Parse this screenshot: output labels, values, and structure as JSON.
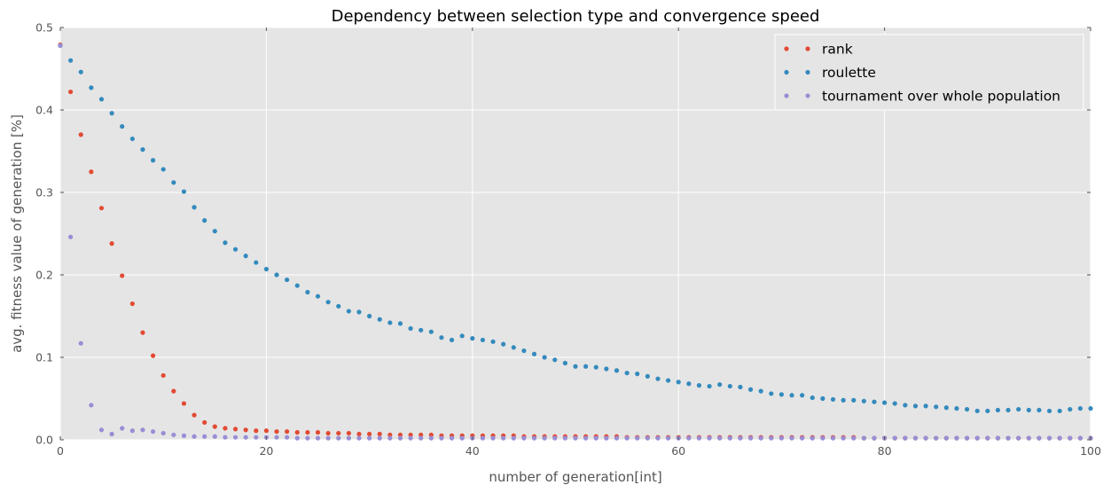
{
  "chart_data": {
    "type": "scatter",
    "title": "Dependency between selection type and convergence speed",
    "xlabel": "number of generation[int]",
    "ylabel": "avg. fitness value of generation [%]",
    "xlim": [
      0,
      100
    ],
    "ylim": [
      0,
      0.5
    ],
    "xticks": [
      0,
      20,
      40,
      60,
      80,
      100
    ],
    "yticks": [
      0.0,
      0.1,
      0.2,
      0.3,
      0.4,
      0.5
    ],
    "xtick_labels": [
      "0",
      "20",
      "40",
      "60",
      "80",
      "100"
    ],
    "ytick_labels": [
      "0.0",
      "0.1",
      "0.2",
      "0.3",
      "0.4",
      "0.5"
    ],
    "grid": true,
    "legend_position": "top-right",
    "x": [
      0,
      1,
      2,
      3,
      4,
      5,
      6,
      7,
      8,
      9,
      10,
      11,
      12,
      13,
      14,
      15,
      16,
      17,
      18,
      19,
      20,
      21,
      22,
      23,
      24,
      25,
      26,
      27,
      28,
      29,
      30,
      31,
      32,
      33,
      34,
      35,
      36,
      37,
      38,
      39,
      40,
      41,
      42,
      43,
      44,
      45,
      46,
      47,
      48,
      49,
      50,
      51,
      52,
      53,
      54,
      55,
      56,
      57,
      58,
      59,
      60,
      61,
      62,
      63,
      64,
      65,
      66,
      67,
      68,
      69,
      70,
      71,
      72,
      73,
      74,
      75,
      76,
      77,
      78,
      79,
      80,
      81,
      82,
      83,
      84,
      85,
      86,
      87,
      88,
      89,
      90,
      91,
      92,
      93,
      94,
      95,
      96,
      97,
      98,
      99,
      100
    ],
    "series": [
      {
        "name": "rank",
        "color": "#E24A33",
        "values": [
          0.479,
          0.422,
          0.37,
          0.325,
          0.281,
          0.238,
          0.199,
          0.165,
          0.13,
          0.102,
          0.078,
          0.059,
          0.044,
          0.03,
          0.021,
          0.016,
          0.014,
          0.013,
          0.012,
          0.011,
          0.011,
          0.01,
          0.01,
          0.009,
          0.009,
          0.009,
          0.008,
          0.008,
          0.008,
          0.007,
          0.007,
          0.007,
          0.006,
          0.006,
          0.006,
          0.006,
          0.006,
          0.005,
          0.005,
          0.005,
          0.005,
          0.005,
          0.005,
          0.005,
          0.005,
          0.004,
          0.004,
          0.004,
          0.004,
          0.004,
          0.004,
          0.004,
          0.004,
          0.004,
          0.004,
          0.003,
          0.003,
          0.003,
          0.003,
          0.003,
          0.003,
          0.003,
          0.003,
          0.003,
          0.003,
          0.003,
          0.003,
          0.003,
          0.003,
          0.003,
          0.003,
          0.003,
          0.003,
          0.003,
          0.003,
          0.003,
          0.003,
          0.003,
          0.002,
          0.002,
          0.002,
          0.002,
          0.002,
          0.002,
          0.002,
          0.002,
          0.002,
          0.002,
          0.002,
          0.002,
          0.002,
          0.002,
          0.002,
          0.002,
          0.002,
          0.002,
          0.002,
          0.002,
          0.002,
          0.002,
          0.002
        ]
      },
      {
        "name": "roulette",
        "color": "#348ABD",
        "values": [
          0.478,
          0.46,
          0.446,
          0.427,
          0.413,
          0.396,
          0.38,
          0.365,
          0.352,
          0.339,
          0.328,
          0.312,
          0.301,
          0.282,
          0.266,
          0.253,
          0.239,
          0.231,
          0.223,
          0.215,
          0.207,
          0.2,
          0.194,
          0.187,
          0.179,
          0.174,
          0.167,
          0.162,
          0.156,
          0.155,
          0.15,
          0.146,
          0.142,
          0.141,
          0.135,
          0.133,
          0.131,
          0.124,
          0.121,
          0.126,
          0.123,
          0.121,
          0.119,
          0.116,
          0.112,
          0.108,
          0.104,
          0.1,
          0.097,
          0.093,
          0.089,
          0.089,
          0.088,
          0.086,
          0.084,
          0.081,
          0.08,
          0.077,
          0.074,
          0.072,
          0.07,
          0.068,
          0.066,
          0.065,
          0.067,
          0.065,
          0.064,
          0.061,
          0.059,
          0.056,
          0.055,
          0.054,
          0.054,
          0.051,
          0.05,
          0.049,
          0.048,
          0.048,
          0.047,
          0.046,
          0.045,
          0.044,
          0.042,
          0.041,
          0.041,
          0.04,
          0.039,
          0.038,
          0.037,
          0.035,
          0.035,
          0.036,
          0.036,
          0.037,
          0.036,
          0.036,
          0.035,
          0.035,
          0.037,
          0.038,
          0.038
        ]
      },
      {
        "name": "tournament over whole population",
        "color": "#988ED5",
        "values": [
          0.478,
          0.246,
          0.117,
          0.042,
          0.012,
          0.007,
          0.014,
          0.011,
          0.012,
          0.01,
          0.008,
          0.006,
          0.005,
          0.004,
          0.004,
          0.004,
          0.003,
          0.003,
          0.003,
          0.003,
          0.003,
          0.003,
          0.003,
          0.002,
          0.002,
          0.002,
          0.002,
          0.002,
          0.002,
          0.002,
          0.002,
          0.002,
          0.002,
          0.002,
          0.002,
          0.002,
          0.002,
          0.002,
          0.002,
          0.002,
          0.002,
          0.002,
          0.002,
          0.002,
          0.002,
          0.002,
          0.002,
          0.002,
          0.002,
          0.002,
          0.002,
          0.002,
          0.002,
          0.002,
          0.002,
          0.002,
          0.002,
          0.002,
          0.002,
          0.002,
          0.002,
          0.002,
          0.002,
          0.002,
          0.002,
          0.002,
          0.002,
          0.002,
          0.002,
          0.002,
          0.002,
          0.002,
          0.002,
          0.002,
          0.002,
          0.002,
          0.002,
          0.002,
          0.002,
          0.002,
          0.002,
          0.002,
          0.002,
          0.002,
          0.002,
          0.002,
          0.002,
          0.002,
          0.002,
          0.002,
          0.002,
          0.002,
          0.002,
          0.002,
          0.002,
          0.002,
          0.002,
          0.002,
          0.002,
          0.002,
          0.002
        ]
      }
    ]
  }
}
